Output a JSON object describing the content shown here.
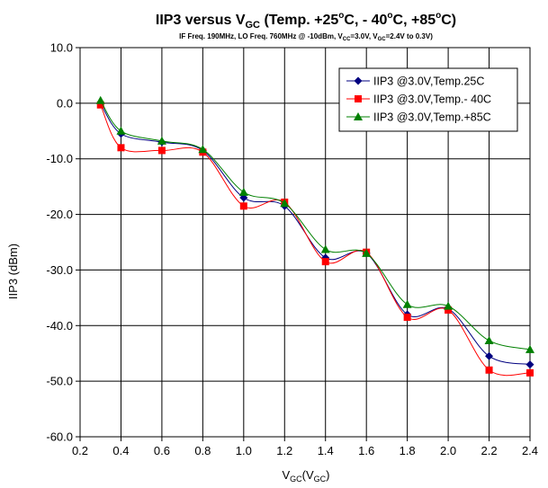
{
  "chart_data": {
    "type": "line",
    "title_parts": [
      "IIP3 versus V",
      "GC",
      " (Temp. +25",
      "o",
      "C, - 40",
      "o",
      "C, +85",
      "o",
      "C)"
    ],
    "subtitle_parts": [
      "IF Freq. 190MHz, LO Freq. 760MHz @ -10dBm, V",
      "CC",
      "=3.0V, V",
      "GC",
      "=2.4V to 0.3V)"
    ],
    "ylabel": "IIP3 (dBm)",
    "xlabel_parts": [
      "V",
      "GC",
      "(V",
      "GC",
      ")"
    ],
    "xlim": [
      0.2,
      2.4
    ],
    "ylim": [
      -60,
      10
    ],
    "xticks": [
      0.2,
      0.4,
      0.6,
      0.8,
      1.0,
      1.2,
      1.4,
      1.6,
      1.8,
      2.0,
      2.2,
      2.4
    ],
    "xtick_labels": [
      "0.2",
      "0.4",
      "0.6",
      "0.8",
      "1.0",
      "1.2",
      "1.4",
      "1.6",
      "1.8",
      "2.0",
      "2.2",
      "2.4"
    ],
    "yticks": [
      10,
      0,
      -10,
      -20,
      -30,
      -40,
      -50,
      -60
    ],
    "ytick_labels": [
      "10.0",
      "0.0",
      "-10.0",
      "-20.0",
      "-30.0",
      "-40.0",
      "-50.0",
      "-60.0"
    ],
    "grid": true,
    "legend_position": "top-right",
    "x": [
      0.3,
      0.4,
      0.6,
      0.8,
      1.0,
      1.2,
      1.4,
      1.6,
      1.8,
      2.0,
      2.2,
      2.4
    ],
    "series": [
      {
        "name": "IIP3 @3.0V,Temp.25C",
        "color": "#000080",
        "marker": "diamond",
        "values": [
          0.0,
          -5.5,
          -7.0,
          -8.5,
          -17.0,
          -18.5,
          -27.8,
          -27.0,
          -38.0,
          -37.0,
          -45.5,
          -47.0
        ]
      },
      {
        "name": "IIP3 @3.0V,Temp.- 40C",
        "color": "#ff0000",
        "marker": "square",
        "values": [
          -0.3,
          -8.0,
          -8.5,
          -8.8,
          -18.5,
          -17.8,
          -28.5,
          -26.8,
          -38.5,
          -37.2,
          -48.0,
          -48.5
        ]
      },
      {
        "name": "IIP3 @3.0V,Temp.+85C",
        "color": "#008000",
        "marker": "triangle",
        "values": [
          0.5,
          -5.0,
          -6.8,
          -8.3,
          -16.0,
          -18.0,
          -26.3,
          -27.0,
          -36.2,
          -36.5,
          -42.7,
          -44.3
        ]
      }
    ]
  }
}
